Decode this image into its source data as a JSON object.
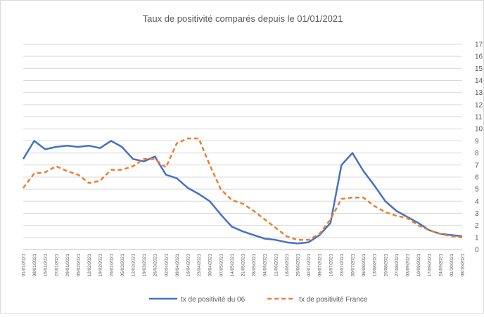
{
  "chart_data": {
    "type": "line",
    "title": "Taux de positivité comparés depuis le 01/01/2021",
    "categories": [
      "01/01/2021",
      "08/01/2021",
      "15/01/2021",
      "22/01/2021",
      "29/01/2021",
      "05/02/2021",
      "12/02/2021",
      "19/02/2021",
      "26/02/2021",
      "05/03/2021",
      "12/03/2021",
      "19/03/2021",
      "26/03/2021",
      "02/04/2021",
      "09/04/2021",
      "16/04/2021",
      "23/04/2021",
      "30/04/2021",
      "07/05/2021",
      "14/05/2021",
      "21/05/2021",
      "28/05/2021",
      "04/06/2021",
      "11/06/2021",
      "18/06/2021",
      "25/06/2021",
      "02/07/2021",
      "09/07/2021",
      "16/07/2021",
      "23/07/2021",
      "30/07/2021",
      "06/08/2021",
      "13/08/2021",
      "20/08/2021",
      "27/08/2021",
      "03/09/2021",
      "10/09/2021",
      "17/09/2021",
      "24/09/2021",
      "01/10/2021",
      "08/10/2021"
    ],
    "series": [
      {
        "name": "tx de positivité du 06",
        "color": "#4472c4",
        "dash": false,
        "values": [
          7.5,
          9.0,
          8.3,
          8.5,
          8.6,
          8.5,
          8.6,
          8.4,
          9.0,
          8.5,
          7.5,
          7.3,
          7.7,
          6.2,
          5.9,
          5.1,
          4.6,
          4.0,
          2.9,
          1.9,
          1.5,
          1.2,
          0.9,
          0.8,
          0.6,
          0.5,
          0.6,
          1.2,
          2.2,
          7.0,
          8.0,
          6.5,
          5.3,
          4.0,
          3.2,
          2.7,
          2.2,
          1.6,
          1.3,
          1.2,
          1.1
        ]
      },
      {
        "name": "tx de positivité France",
        "color": "#ed7d31",
        "dash": true,
        "values": [
          5.1,
          6.3,
          6.4,
          6.9,
          6.5,
          6.2,
          5.5,
          5.7,
          6.6,
          6.6,
          6.9,
          7.5,
          7.5,
          6.8,
          8.8,
          9.2,
          9.2,
          7.0,
          5.0,
          4.1,
          3.8,
          3.2,
          2.5,
          1.8,
          1.1,
          0.8,
          0.8,
          1.3,
          2.5,
          4.2,
          4.3,
          4.3,
          3.6,
          3.1,
          2.8,
          2.6,
          2.0,
          1.6,
          1.3,
          1.1,
          1.0
        ]
      }
    ],
    "ylim": [
      0,
      17
    ],
    "yticks": [
      0,
      1,
      2,
      3,
      4,
      5,
      6,
      7,
      8,
      9,
      10,
      11,
      12,
      13,
      14,
      15,
      16,
      17
    ],
    "grid": true
  }
}
